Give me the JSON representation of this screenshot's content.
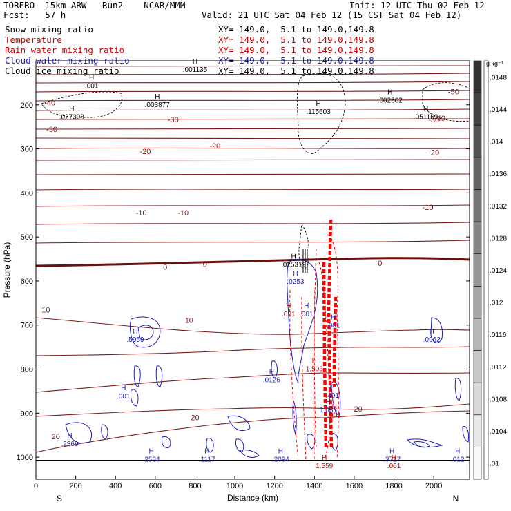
{
  "header": {
    "model": "TORERO  15km ARW   Run2    NCAR/MMM",
    "init": "Init: 12 UTC Thu 02 Feb 12",
    "fcst": "Fcst:   57 h",
    "valid": "Valid: 21 UTC Sat 04 Feb 12 (15 CST Sat 04 Feb 12)"
  },
  "legend": [
    {
      "label": "Snow mixing ratio",
      "xy": "XY= 149.0,  5.1 to 149.0,149.8",
      "color": "#000000"
    },
    {
      "label": "Temperature",
      "xy": "XY= 149.0,  5.1 to 149.0,149.8",
      "color": "#cc0000"
    },
    {
      "label": "Rain water mixing ratio",
      "xy": "XY= 149.0,  5.1 to 149.0,149.8",
      "color": "#cc0000"
    },
    {
      "label": "Cloud water mixing ratio",
      "xy": "XY= 149.0,  5.1 to 149.0,149.8",
      "color": "#1f1fb4"
    },
    {
      "label": "Cloud ice mixing ratio",
      "xy": "XY= 149.0,  5.1 to 149.0,149.8",
      "color": "#000000"
    }
  ],
  "colors": {
    "temperature": "#7a1c1c",
    "zero_isotherm": "#6e0f0f",
    "cloud_water": "#1f1fb4",
    "rain": "#ff0000",
    "cloud_ice": "#000000"
  },
  "chart_data": {
    "type": "cross-section",
    "xlabel": "Distance (km)",
    "ylabel": "Pressure (hPa)",
    "xlim": [
      0,
      2180
    ],
    "ylim": [
      1050,
      100
    ],
    "xticks": [
      0,
      200,
      400,
      600,
      800,
      1000,
      1200,
      1400,
      1600,
      1800,
      2000
    ],
    "yticks": [
      200,
      300,
      400,
      500,
      600,
      700,
      800,
      900,
      1000
    ],
    "end_labels": {
      "left": "S",
      "right": "N"
    },
    "colorbar": {
      "unit": "g kg⁻¹",
      "values": [
        ".01",
        ".0104",
        ".0108",
        ".0112",
        ".0116",
        ".012",
        ".0124",
        ".0128",
        ".0132",
        ".0136",
        ".014",
        ".0144",
        ".0148"
      ]
    },
    "temperature_labels": [
      {
        "text": "-50",
        "x": 2100,
        "p": 170
      },
      {
        "text": "-40",
        "x": 70,
        "p": 195
      },
      {
        "text": "-40",
        "x": 2030,
        "p": 230
      },
      {
        "text": "-30",
        "x": 80,
        "p": 255
      },
      {
        "text": "-30",
        "x": 690,
        "p": 233
      },
      {
        "text": "-30",
        "x": 2000,
        "p": 233
      },
      {
        "text": "-20",
        "x": 550,
        "p": 305
      },
      {
        "text": "-20",
        "x": 900,
        "p": 293
      },
      {
        "text": "-20",
        "x": 2000,
        "p": 308
      },
      {
        "text": "-10",
        "x": 530,
        "p": 445
      },
      {
        "text": "-10",
        "x": 740,
        "p": 445
      },
      {
        "text": "-10",
        "x": 1970,
        "p": 432
      },
      {
        "text": "0",
        "x": 650,
        "p": 568
      },
      {
        "text": "0",
        "x": 850,
        "p": 562
      },
      {
        "text": "0",
        "x": 1730,
        "p": 559
      },
      {
        "text": "10",
        "x": 50,
        "p": 665
      },
      {
        "text": "10",
        "x": 770,
        "p": 689
      },
      {
        "text": "20",
        "x": 800,
        "p": 910
      },
      {
        "text": "20",
        "x": 1620,
        "p": 890
      },
      {
        "text": "20",
        "x": 100,
        "p": 953
      }
    ],
    "maxima": [
      {
        "value": ".001135",
        "x": 800,
        "p": 120,
        "color": "#000000"
      },
      {
        "value": ".001",
        "x": 280,
        "p": 157,
        "color": "#000000"
      },
      {
        "value": ".003877",
        "x": 610,
        "p": 200,
        "color": "#000000"
      },
      {
        "value": ".027398",
        "x": 180,
        "p": 228,
        "color": "#000000"
      },
      {
        "value": ".115603",
        "x": 1420,
        "p": 216,
        "color": "#000000"
      },
      {
        "value": ".002502",
        "x": 1780,
        "p": 190,
        "color": "#000000"
      },
      {
        "value": ".051169",
        "x": 1960,
        "p": 228,
        "color": "#000000"
      },
      {
        "value": ".025319",
        "x": 1295,
        "p": 563,
        "color": "#000000"
      },
      {
        "value": ".0253",
        "x": 1305,
        "p": 602,
        "color": "#1f1fb4"
      },
      {
        "value": ".001",
        "x": 1270,
        "p": 675,
        "color": "#cc0000"
      },
      {
        "value": ".001",
        "x": 1360,
        "p": 675,
        "color": "#1f1fb4"
      },
      {
        "value": ".001",
        "x": 1495,
        "p": 701,
        "color": "#1f1fb4"
      },
      {
        "value": ".5959",
        "x": 500,
        "p": 733,
        "color": "#1f1fb4"
      },
      {
        "value": ".0962",
        "x": 1990,
        "p": 733,
        "color": "#1f1fb4"
      },
      {
        "value": "1.503",
        "x": 1400,
        "p": 800,
        "color": "#cc0000"
      },
      {
        "value": ".0126",
        "x": 1185,
        "p": 825,
        "color": "#1f1fb4"
      },
      {
        "value": ".001",
        "x": 440,
        "p": 862,
        "color": "#1f1fb4"
      },
      {
        "value": ".401",
        "x": 1490,
        "p": 860,
        "color": "#1f1fb4"
      },
      {
        "value": "1.088",
        "x": 1470,
        "p": 893,
        "color": "#1f1fb4"
      },
      {
        "value": ".001",
        "x": 1500,
        "p": 905,
        "color": "#cc0000"
      },
      {
        "value": ".2369",
        "x": 170,
        "p": 970,
        "color": "#1f1fb4"
      },
      {
        "value": ".2534",
        "x": 580,
        "p": 1005,
        "color": "#1f1fb4"
      },
      {
        "value": ".1117",
        "x": 860,
        "p": 1005,
        "color": "#1f1fb4"
      },
      {
        "value": ".2094",
        "x": 1230,
        "p": 1005,
        "color": "#1f1fb4"
      },
      {
        "value": ".3717",
        "x": 1790,
        "p": 1005,
        "color": "#1f1fb4"
      },
      {
        "value": ".012",
        "x": 2120,
        "p": 1005,
        "color": "#1f1fb4"
      },
      {
        "value": "1.559",
        "x": 1450,
        "p": 1020,
        "color": "#cc0000"
      },
      {
        "value": ".001",
        "x": 1800,
        "p": 1020,
        "color": "#cc0000"
      }
    ]
  }
}
